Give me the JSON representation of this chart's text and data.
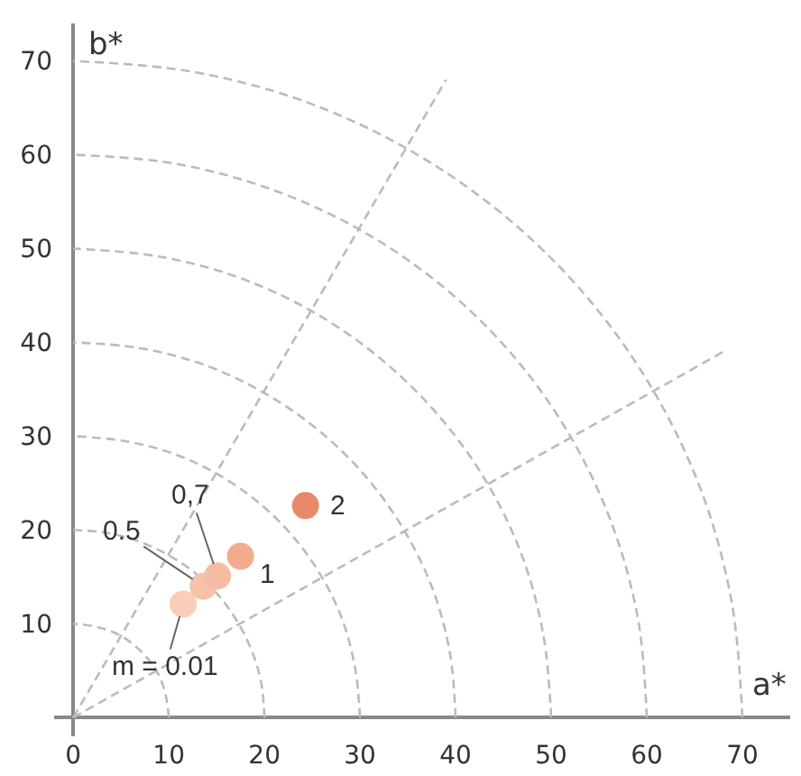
{
  "chart_data": {
    "type": "scatter",
    "xlabel": "a*",
    "ylabel": "b*",
    "series": [
      {
        "type": "line",
        "color": "#bbbbbb",
        "line_style": "dashed",
        "marker": "none",
        "x": [
          0,
          68
        ],
        "values": [
          0,
          39
        ]
      },
      {
        "type": "line",
        "color": "#bbbbbb",
        "line_style": "dashed",
        "marker": "none",
        "x": [
          0,
          39
        ],
        "values": [
          0,
          68
        ]
      },
      {
        "type": "line",
        "color": "#bbbbbb",
        "line_style": "dashed",
        "marker": "none",
        "x": [
          10,
          9.8,
          9.4,
          8.7,
          7.7,
          6.4,
          5,
          3.4,
          1.7,
          0
        ],
        "values": [
          0,
          1.7,
          3.4,
          5,
          6.4,
          7.7,
          8.7,
          9.4,
          9.8,
          10
        ]
      },
      {
        "type": "line",
        "color": "#bbbbbb",
        "line_style": "dashed",
        "marker": "none",
        "x": [
          20,
          19.7,
          18.8,
          17.3,
          15.3,
          12.9,
          10,
          6.8,
          3.5,
          0
        ],
        "values": [
          0,
          3.5,
          6.8,
          10,
          12.9,
          15.3,
          17.3,
          18.8,
          19.7,
          20
        ]
      },
      {
        "type": "line",
        "color": "#bbbbbb",
        "line_style": "dashed",
        "marker": "none",
        "x": [
          30,
          29.5,
          28.2,
          26,
          23,
          19.3,
          15,
          10.3,
          5.2,
          0
        ],
        "values": [
          0,
          5.2,
          10.3,
          15,
          19.3,
          23,
          26,
          28.2,
          29.5,
          30
        ]
      },
      {
        "type": "line",
        "color": "#bbbbbb",
        "line_style": "dashed",
        "marker": "none",
        "x": [
          40,
          39.4,
          37.6,
          34.6,
          30.6,
          25.7,
          20,
          13.7,
          6.9,
          0
        ],
        "values": [
          0,
          6.9,
          13.7,
          20,
          25.7,
          30.6,
          34.6,
          37.6,
          39.4,
          40
        ]
      },
      {
        "type": "line",
        "color": "#bbbbbb",
        "line_style": "dashed",
        "marker": "none",
        "x": [
          50,
          49.2,
          47,
          43.3,
          38.3,
          32.1,
          25,
          17.1,
          8.7,
          0
        ],
        "values": [
          0,
          8.7,
          17.1,
          25,
          32.1,
          38.3,
          43.3,
          47,
          49.2,
          50
        ]
      },
      {
        "type": "line",
        "color": "#bbbbbb",
        "line_style": "dashed",
        "marker": "none",
        "x": [
          60,
          59.1,
          56.4,
          52,
          46,
          38.6,
          30,
          20.5,
          10.4,
          0
        ],
        "values": [
          0,
          10.4,
          20.5,
          30,
          38.6,
          46,
          52,
          56.4,
          59.1,
          60
        ]
      },
      {
        "type": "line",
        "color": "#bbbbbb",
        "line_style": "dashed",
        "marker": "none",
        "x": [
          70,
          68.9,
          65.8,
          60.6,
          53.6,
          45,
          35,
          23.9,
          12.2,
          0
        ],
        "values": [
          0,
          12.2,
          23.9,
          35,
          45,
          53.6,
          60.6,
          65.8,
          68.9,
          70
        ]
      },
      {
        "type": "scatter",
        "marker": "circle",
        "x": [
          11.5,
          13.6,
          15.1,
          17.5,
          24.3
        ],
        "values": [
          12.1,
          14.0,
          15.1,
          17.2,
          22.6
        ],
        "colors": [
          "#f9cdb9",
          "#f6c2aa",
          "#f5bda3",
          "#f2ab8e",
          "#e8896b"
        ]
      }
    ],
    "annotations": [
      {
        "text": "m = 0.01",
        "x": 11.5,
        "y": 12.1
      },
      {
        "text": "0.5",
        "x": 13.6,
        "y": 14.0
      },
      {
        "text": "0,7",
        "x": 15.1,
        "y": 15.1
      },
      {
        "text": "1",
        "x": 17.5,
        "y": 17.2
      },
      {
        "text": "2",
        "x": 24.3,
        "y": 22.6
      }
    ],
    "xlim": [
      -2,
      75
    ],
    "xticks": [
      0,
      10,
      20,
      30,
      40,
      50,
      60,
      70
    ],
    "ylim": [
      -2,
      74
    ],
    "yticks": [
      10,
      20,
      30,
      40,
      50,
      60,
      70
    ]
  }
}
